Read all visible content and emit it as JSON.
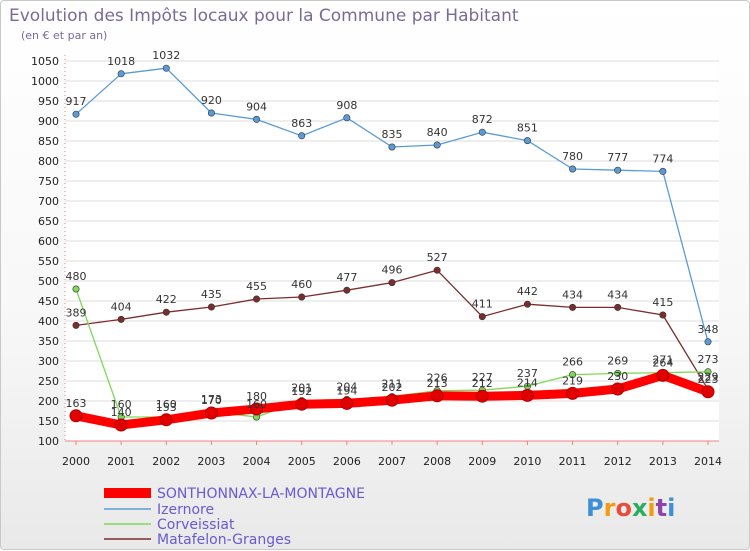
{
  "chart_data": {
    "type": "line",
    "title": "Evolution des Impôts locaux pour la Commune par Habitant",
    "subtitle": "(en € et par an)",
    "x": [
      "2000",
      "2001",
      "2002",
      "2003",
      "2004",
      "2005",
      "2006",
      "2007",
      "2008",
      "2009",
      "2010",
      "2011",
      "2012",
      "2013",
      "2014"
    ],
    "ylim": [
      100,
      1050
    ],
    "yticks": [
      100,
      150,
      200,
      250,
      300,
      350,
      400,
      450,
      500,
      550,
      600,
      650,
      700,
      750,
      800,
      850,
      900,
      950,
      1000,
      1050
    ],
    "grid": true,
    "legend_position": "bottom-left",
    "series": [
      {
        "name": "SONTHONNAX-LA-MONTAGNE",
        "color": "#ff0000",
        "values": [
          163,
          140,
          153,
          170,
          180,
          192,
          194,
          202,
          213,
          212,
          214,
          219,
          230,
          264,
          223
        ]
      },
      {
        "name": "Izernore",
        "color": "#5b9bd5",
        "values": [
          917,
          1018,
          1032,
          920,
          904,
          863,
          908,
          835,
          840,
          872,
          851,
          780,
          777,
          774,
          348
        ]
      },
      {
        "name": "Corveissiat",
        "color": "#7ed957",
        "values": [
          480,
          160,
          160,
          173,
          160,
          201,
          204,
          211,
          226,
          227,
          237,
          266,
          269,
          271,
          273
        ]
      },
      {
        "name": "Matafelon-Granges",
        "color": "#7b2d2d",
        "values": [
          389,
          404,
          422,
          435,
          455,
          460,
          477,
          496,
          527,
          411,
          442,
          434,
          434,
          415,
          229
        ]
      }
    ]
  },
  "watermark": "Proxiti"
}
